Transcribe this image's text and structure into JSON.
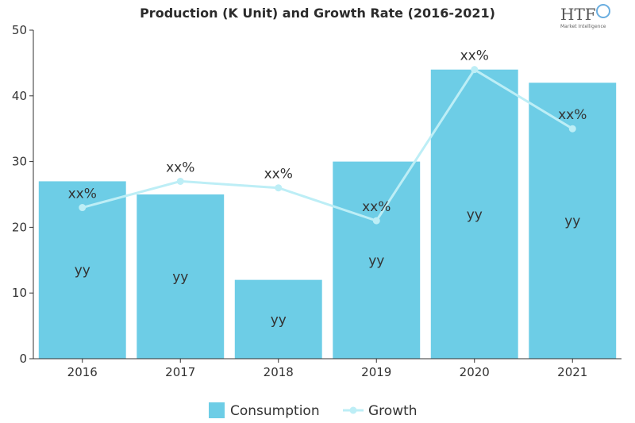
{
  "chart_data": {
    "type": "bar",
    "title": "Production (K Unit) and Growth Rate (2016-2021)",
    "categories": [
      "2016",
      "2017",
      "2018",
      "2019",
      "2020",
      "2021"
    ],
    "ylim": [
      0,
      50
    ],
    "yticks": [
      0,
      10,
      20,
      30,
      40,
      50
    ],
    "grid": false,
    "legend_position": "bottom",
    "series": [
      {
        "name": "Consumption",
        "type": "bar",
        "color": "#6dcde6",
        "values": [
          27,
          25,
          12,
          30,
          44,
          42
        ],
        "labels": [
          "yy",
          "yy",
          "yy",
          "yy",
          "yy",
          "yy"
        ]
      },
      {
        "name": "Growth",
        "type": "line",
        "color": "#bdeef6",
        "values": [
          23,
          27,
          26,
          21,
          44,
          35
        ],
        "labels": [
          "xx%",
          "xx%",
          "xx%",
          "xx%",
          "xx%",
          "xx%"
        ]
      }
    ]
  },
  "logo": {
    "text": "HTF",
    "subtext": "Market Intelligence"
  }
}
